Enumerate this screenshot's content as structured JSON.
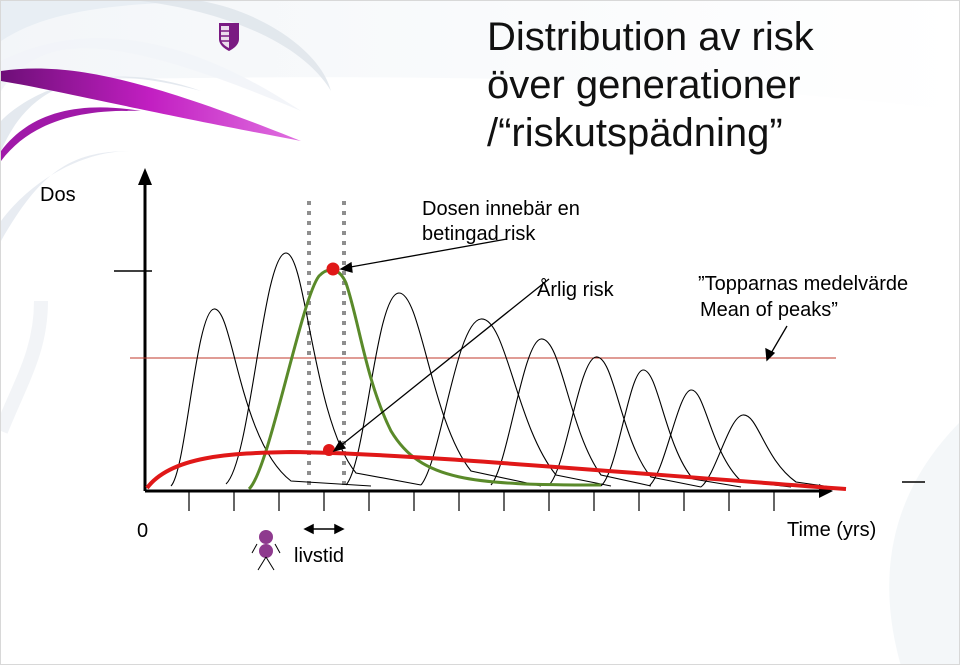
{
  "title": {
    "line1": "Distribution av risk",
    "line2": "över generationer",
    "line3": "/“riskutspädning”"
  },
  "labels": {
    "y_axis": "Dos",
    "dose_note_line1": "Dosen innebär en",
    "dose_note_line2": "betingad risk",
    "annual_risk": "Årlig risk",
    "mean_peaks_line1": "”Topparnas medelvärde",
    "mean_peaks_line2": "Mean of peaks”",
    "origin": "0",
    "x_axis": "Time (yrs)",
    "lifetime": "livstid"
  },
  "colors": {
    "highlight_peak": "#5a8a2a",
    "annual_risk_curve": "#e01818",
    "mean_line": "#c0392b",
    "lifetime_dots": "#8e8e8e",
    "person_icon": "#8e3a8e",
    "logo_band": "#b01ab0"
  },
  "icons": {
    "logo": "shield-logo-icon",
    "person": "person-icon"
  }
}
